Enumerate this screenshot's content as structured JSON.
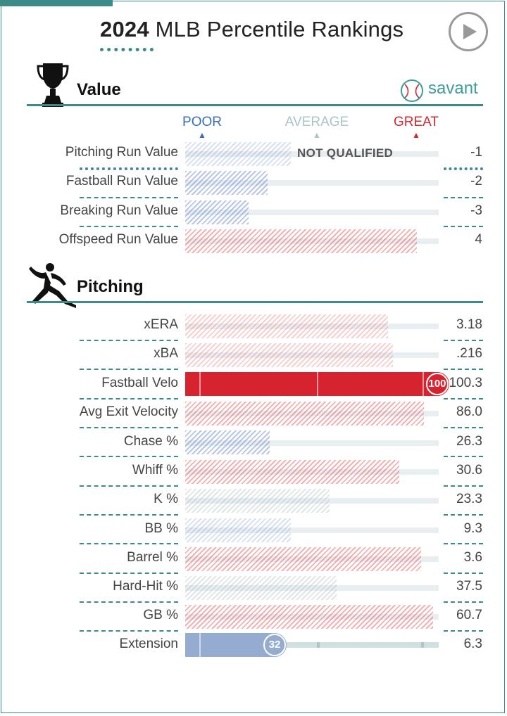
{
  "header": {
    "title_year": "2024",
    "title_rest": "MLB Percentile Rankings",
    "play_icon": "play-icon"
  },
  "colors": {
    "teal": "#3c8b88",
    "great_red": "#d72330",
    "poor_blue": "#3a6fb5",
    "average_grey": "#a9c5c6",
    "savant_teal": "#3c9e99"
  },
  "value_section": {
    "title": "Value",
    "icon": "trophy-icon",
    "brand": "savant",
    "brand_icon": "baseball-icon",
    "scale": {
      "poor": "POOR",
      "average": "AVERAGE",
      "great": "GREAT"
    },
    "rows": [
      {
        "label": "Pitching Run Value",
        "value": "-1",
        "note": "NOT QUALIFIED",
        "percentile": 42,
        "qualified": false
      },
      {
        "label": "Fastball Run Value",
        "value": "-2",
        "percentile": 32
      },
      {
        "label": "Breaking Run Value",
        "value": "-3",
        "percentile": 25
      },
      {
        "label": "Offspeed Run Value",
        "value": "4",
        "percentile": 91
      }
    ]
  },
  "pitching_section": {
    "title": "Pitching",
    "icon": "pitcher-icon",
    "rows": [
      {
        "label": "xERA",
        "value": "3.18",
        "percentile": 80
      },
      {
        "label": "xBA",
        "value": ".216",
        "percentile": 82
      },
      {
        "label": "Fastball Velo",
        "value": "100.3",
        "percentile": 100,
        "badge": "100"
      },
      {
        "label": "Avg Exit Velocity",
        "value": "86.0",
        "percentile": 94
      },
      {
        "label": "Chase %",
        "value": "26.3",
        "percentile": 33
      },
      {
        "label": "Whiff %",
        "value": "30.6",
        "percentile": 84
      },
      {
        "label": "K %",
        "value": "23.3",
        "percentile": 57
      },
      {
        "label": "BB %",
        "value": "9.3",
        "percentile": 42
      },
      {
        "label": "Barrel %",
        "value": "3.6",
        "percentile": 93
      },
      {
        "label": "Hard-Hit %",
        "value": "37.5",
        "percentile": 60
      },
      {
        "label": "GB %",
        "value": "60.7",
        "percentile": 98
      },
      {
        "label": "Extension",
        "value": "6.3",
        "percentile": 32,
        "badge": "32"
      }
    ]
  }
}
